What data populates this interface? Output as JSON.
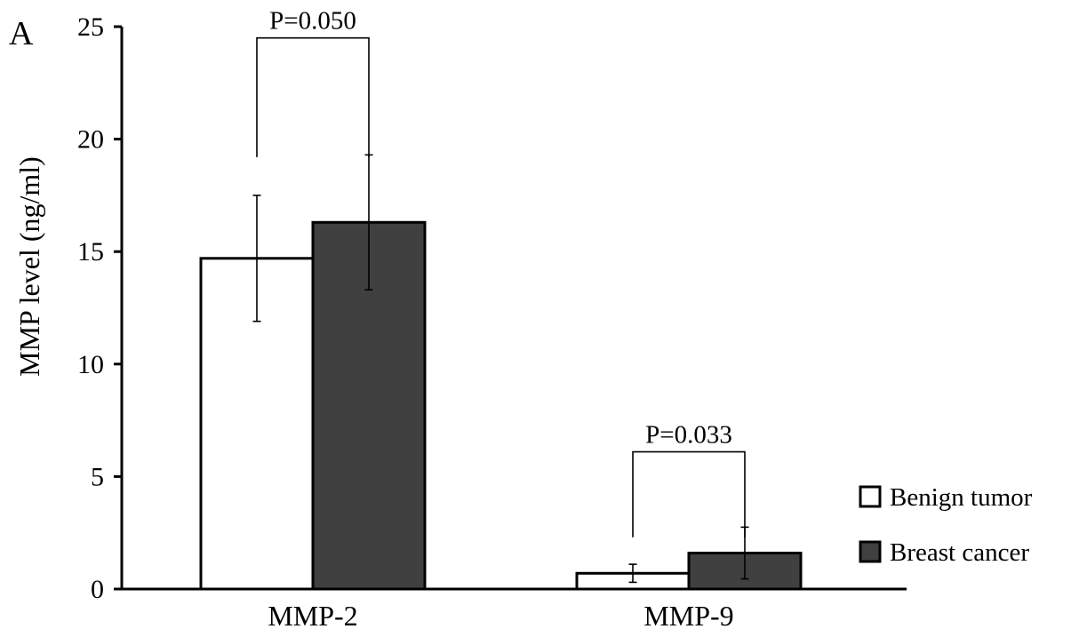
{
  "panel_label": "A",
  "chart_data": {
    "type": "bar",
    "categories": [
      "MMP-2",
      "MMP-9"
    ],
    "series": [
      {
        "name": "Benign tumor",
        "values": [
          14.7,
          0.7
        ],
        "errors": [
          2.8,
          0.4
        ],
        "color": "#ffffff"
      },
      {
        "name": "Breast cancer",
        "values": [
          16.3,
          1.6
        ],
        "errors": [
          3.0,
          1.15
        ],
        "color": "#404040"
      }
    ],
    "ylabel": "MMP level (ng/ml)",
    "xlabel": "",
    "ylim": [
      0,
      25
    ],
    "yticks": [
      0,
      5,
      10,
      15,
      20,
      25
    ],
    "grid": false,
    "legend_position": "bottom-right",
    "annotations": [
      {
        "text": "P=0.050",
        "category_index": 0,
        "bracket_low_y": 19.2,
        "bracket_top_y": 24.5
      },
      {
        "text": "P=0.033",
        "category_index": 1,
        "bracket_low_y": 2.3,
        "bracket_top_y": 6.1
      }
    ]
  }
}
